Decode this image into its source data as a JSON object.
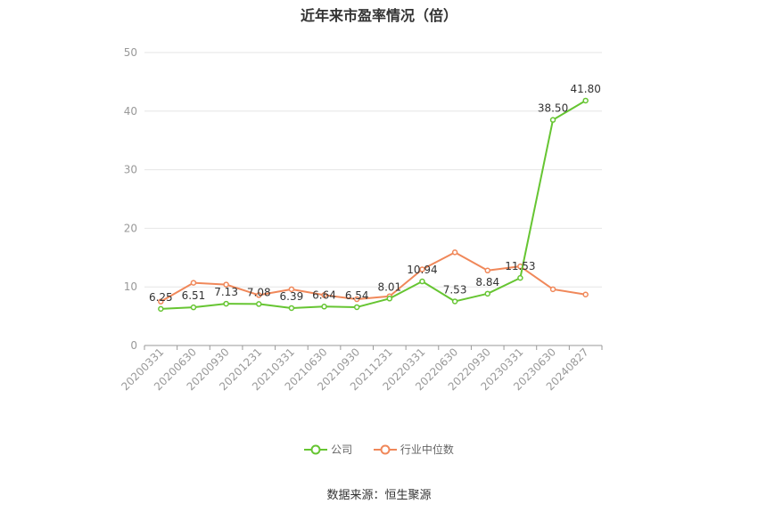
{
  "title": "近年来市盈率情况（倍）",
  "source": "数据来源：恒生聚源",
  "colors": {
    "company": "#66c532",
    "industry": "#f0885a",
    "grid": "#e6e6e6",
    "axis": "#999999"
  },
  "legend": {
    "company_label": "公司",
    "industry_label": "行业中位数"
  },
  "chart_data": {
    "type": "line",
    "title": "近年来市盈率情况（倍）",
    "categories": [
      "20200331",
      "20200630",
      "20200930",
      "20201231",
      "20210331",
      "20210630",
      "20210930",
      "20211231",
      "20220331",
      "20220630",
      "20220930",
      "20230331",
      "20230630",
      "20240827"
    ],
    "ylim": [
      0,
      50
    ],
    "yticks": [
      0,
      10,
      20,
      30,
      40,
      50
    ],
    "grid": true,
    "legend_position": "bottom",
    "series": [
      {
        "name": "公司",
        "values": [
          6.25,
          6.51,
          7.13,
          7.08,
          6.39,
          6.64,
          6.54,
          8.01,
          10.94,
          7.53,
          8.84,
          11.53,
          38.5,
          41.8
        ],
        "labels": [
          "6.25",
          "6.51",
          "7.13",
          "7.08",
          "6.39",
          "6.64",
          "6.54",
          "8.01",
          "10.94",
          "7.53",
          "8.84",
          "11.53",
          "38.50",
          "41.80"
        ]
      },
      {
        "name": "行业中位数",
        "values": [
          7.5,
          10.7,
          10.4,
          8.6,
          9.6,
          8.6,
          7.9,
          8.4,
          13.0,
          15.9,
          12.8,
          13.5,
          9.6,
          8.7
        ]
      }
    ]
  }
}
